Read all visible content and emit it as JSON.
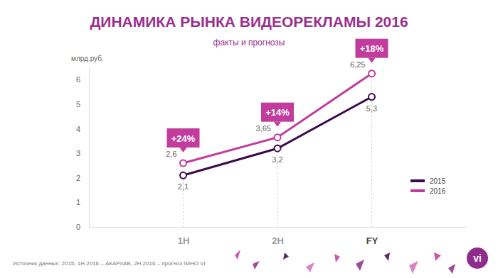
{
  "chart_data": {
    "type": "line",
    "title": "ДИНАМИКА РЫНКА ВИДЕОРЕКЛАМЫ 2016",
    "subtitle": "факты и прогнозы",
    "y_label": "млрд.руб.",
    "categories": [
      "1H",
      "2H",
      "FY"
    ],
    "series": [
      {
        "name": "2015",
        "color": "#3b0a4a",
        "values": [
          2.1,
          3.2,
          5.3
        ],
        "value_labels": [
          "2,1",
          "3,2",
          "5,3"
        ]
      },
      {
        "name": "2016",
        "color": "#c13c9d",
        "values": [
          2.6,
          3.65,
          6.25
        ],
        "value_labels": [
          "2,6",
          "3,65",
          "6,25"
        ]
      }
    ],
    "ylim": [
      0,
      6.5
    ],
    "yticks": [
      0,
      1,
      2,
      3,
      4,
      5,
      6
    ],
    "grid": false,
    "legend": "right",
    "data_labels": true,
    "marker": "circle",
    "annotations": [
      "+24%",
      "+14%",
      "+18%"
    ],
    "source": "Источник данных: 2015, 1H 2016 – АКАР/IAB, 2H 2016 – прогноз IMHO VI",
    "logo": "vi"
  }
}
